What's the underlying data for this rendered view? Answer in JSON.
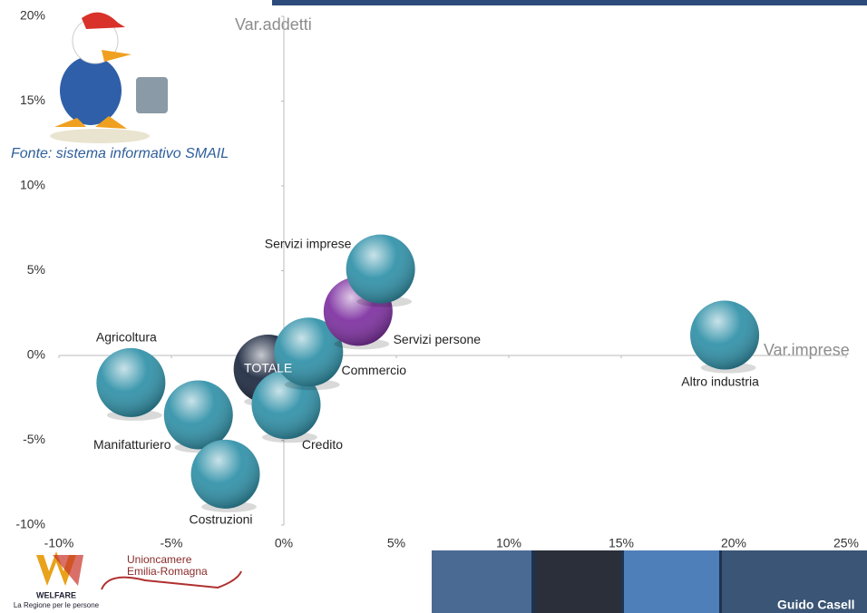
{
  "chart_data": {
    "type": "scatter",
    "source": "Fonte: sistema informativo SMAIL",
    "x_label": "Var.imprese",
    "y_label": "Var.addetti",
    "labels": [
      "Agricoltura",
      "Manifatturiero",
      "Costruzioni",
      "TOTALE",
      "Credito",
      "Commercio",
      "Servizi persone",
      "Servizi imprese",
      "Altro industria"
    ],
    "x": [
      -6.8,
      -3.8,
      -2.6,
      -0.7,
      0.1,
      1.1,
      3.3,
      4.3,
      19.6
    ],
    "y": [
      -1.6,
      -3.5,
      -7.0,
      -0.8,
      -2.9,
      0.2,
      2.6,
      5.1,
      1.2
    ],
    "colors": [
      "#2a8ea6",
      "#2a8ea6",
      "#2a8ea6",
      "#16223a",
      "#2a8ea6",
      "#2a8ea6",
      "#7a2a9e",
      "#2a8ea6",
      "#2a8ea6"
    ],
    "xlim": [
      -10,
      25
    ],
    "xticks": [
      {
        "value": -10,
        "label": "-10%"
      },
      {
        "value": -5,
        "label": "-5%"
      },
      {
        "value": 0,
        "label": "0%"
      },
      {
        "value": 5,
        "label": "5%"
      },
      {
        "value": 10,
        "label": "10%"
      },
      {
        "value": 15,
        "label": "15%"
      },
      {
        "value": 20,
        "label": "20%"
      },
      {
        "value": 25,
        "label": "25%"
      }
    ],
    "ylim": [
      -10,
      20
    ],
    "yticks": [
      {
        "value": -10,
        "label": "-10%"
      },
      {
        "value": -5,
        "label": "-5%"
      },
      {
        "value": 0,
        "label": "0%"
      },
      {
        "value": 5,
        "label": "5%"
      },
      {
        "value": 10,
        "label": "10%"
      },
      {
        "value": 15,
        "label": "15%"
      },
      {
        "value": 20,
        "label": "20%"
      }
    ]
  },
  "footer": {
    "logo_left": "WELFARE",
    "logo_left_sub": "La Regione per le persone",
    "logo_mid_1": "Unioncamere",
    "logo_mid_2": "Emilia-Romagna",
    "author": "Guido Casell"
  }
}
